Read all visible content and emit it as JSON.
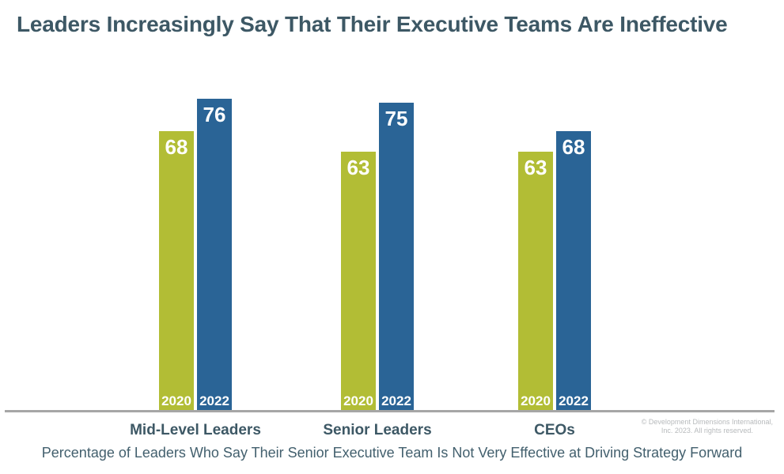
{
  "title": "Leaders Increasingly Say That Their Executive Teams Are Ineffective",
  "caption": "Percentage of Leaders Who Say Their Senior Executive Team Is Not Very Effective at Driving Strategy Forward",
  "copyright": {
    "line1": "© Development Dimensions International,",
    "line2": "Inc. 2023. All rights reserved."
  },
  "colors": {
    "title_text": "#3d5865",
    "category_text": "#3d5865",
    "caption_text": "#43606e",
    "axis_line": "#a6a6a6",
    "bar_label_text": "#ffffff",
    "copyright_text": "#b7babc",
    "series_2020": "#b2bd35",
    "series_2022": "#2a6496",
    "background": "#ffffff"
  },
  "chart_data": {
    "type": "bar",
    "title": "Leaders Increasingly Say That Their Executive Teams Are Ineffective",
    "subtitle": "Percentage of Leaders Who Say Their Senior Executive Team Is Not Very Effective at Driving Strategy Forward",
    "categories": [
      "Mid-Level Leaders",
      "Senior Leaders",
      "CEOs"
    ],
    "series": [
      {
        "name": "2020",
        "color": "#b2bd35",
        "values": [
          68,
          63,
          63
        ]
      },
      {
        "name": "2022",
        "color": "#2a6496",
        "values": [
          76,
          75,
          68
        ]
      }
    ],
    "ylim": [
      0,
      100
    ],
    "grid": false,
    "y_axis_visible": false,
    "legend_position": "inside-bar-bottom",
    "value_labels_position": "inside-bar-top"
  }
}
